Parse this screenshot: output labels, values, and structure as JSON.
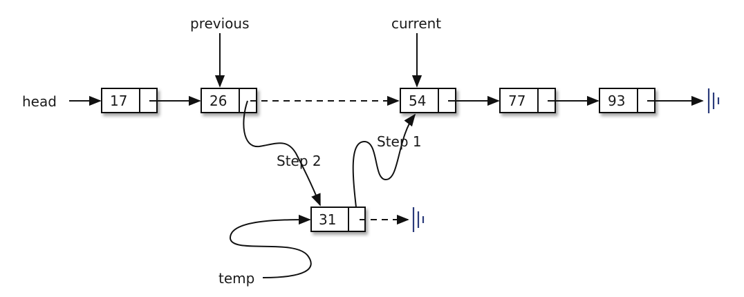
{
  "labels": {
    "head": "head",
    "previous": "previous",
    "current": "current",
    "temp": "temp",
    "step1": "Step 1",
    "step2": "Step 2"
  },
  "nodes": [
    {
      "id": "n17",
      "value": "17"
    },
    {
      "id": "n26",
      "value": "26"
    },
    {
      "id": "n54",
      "value": "54"
    },
    {
      "id": "n77",
      "value": "77"
    },
    {
      "id": "n93",
      "value": "93"
    },
    {
      "id": "n31",
      "value": "31"
    }
  ],
  "colors": {
    "line": "#111111",
    "ground": "#2a3a7a",
    "text": "#1a1a1a"
  }
}
